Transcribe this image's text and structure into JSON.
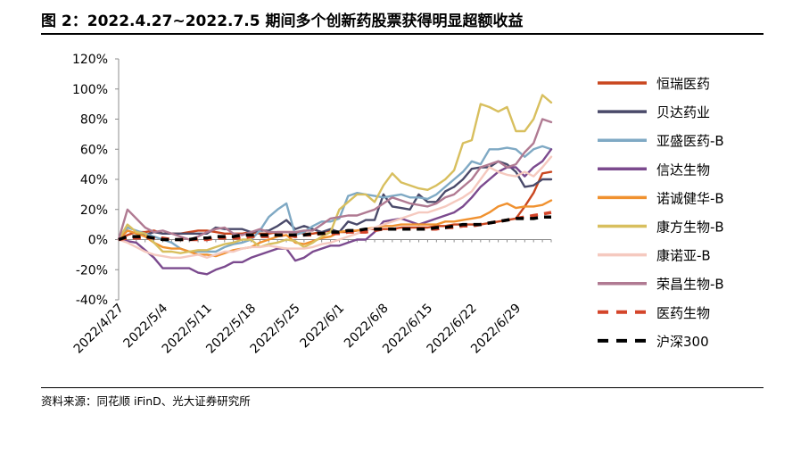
{
  "title": "图 2：2022.4.27~2022.7.5 期间多个创新药股票获得明显超额收益",
  "source": "资料来源：同花顺 iFinD、光大证券研究所",
  "chart_data": {
    "type": "line",
    "title": "",
    "xlabel": "",
    "ylabel": "",
    "ylim": [
      -40,
      120
    ],
    "yticks": [
      -40,
      -20,
      0,
      20,
      40,
      60,
      80,
      100,
      120
    ],
    "ytick_labels": [
      "-40%",
      "-20%",
      "0%",
      "20%",
      "40%",
      "60%",
      "80%",
      "100%",
      "120%"
    ],
    "x_tick_labels": [
      "2022/4/27",
      "2022/5/4",
      "2022/5/11",
      "2022/5/18",
      "2022/5/25",
      "2022/6/1",
      "2022/6/8",
      "2022/6/15",
      "2022/6/22",
      "2022/6/29"
    ],
    "x_tick_offsets": [
      0,
      5,
      10,
      15,
      20,
      25,
      30,
      35,
      40,
      45
    ],
    "grid": false,
    "legend_position": "right",
    "n_points": 50,
    "series": [
      {
        "name": "恒瑞医药",
        "color": "#C9461F",
        "style": "solid",
        "values": [
          0,
          3,
          5,
          5,
          6,
          4,
          4,
          4,
          5,
          6,
          6,
          5,
          4,
          4,
          4,
          5,
          4,
          4,
          5,
          5,
          5,
          4,
          4,
          5,
          6,
          5,
          5,
          6,
          7,
          7,
          7,
          7,
          8,
          8,
          8,
          8,
          9,
          9,
          10,
          10,
          10,
          10,
          11,
          12,
          13,
          14,
          22,
          31,
          44,
          45
        ]
      },
      {
        "name": "贝达药业",
        "color": "#4A4A6A",
        "style": "solid",
        "values": [
          0,
          6,
          4,
          3,
          5,
          4,
          4,
          4,
          4,
          4,
          4,
          8,
          7,
          7,
          7,
          5,
          6,
          6,
          9,
          13,
          7,
          9,
          7,
          5,
          7,
          5,
          12,
          10,
          13,
          13,
          30,
          22,
          21,
          20,
          30,
          25,
          25,
          32,
          35,
          40,
          47,
          48,
          48,
          52,
          50,
          45,
          35,
          36,
          40,
          40
        ]
      },
      {
        "name": "亚盛医药-B",
        "color": "#7FA9C4",
        "style": "solid",
        "values": [
          0,
          8,
          6,
          4,
          2,
          0,
          -2,
          -6,
          -8,
          -8,
          -8,
          -8,
          -5,
          -3,
          -2,
          0,
          6,
          15,
          20,
          24,
          3,
          5,
          9,
          12,
          12,
          14,
          29,
          31,
          30,
          29,
          28,
          29,
          30,
          28,
          28,
          27,
          30,
          35,
          40,
          45,
          52,
          50,
          60,
          60,
          61,
          60,
          55,
          60,
          62,
          60
        ]
      },
      {
        "name": "信达生物",
        "color": "#7B4A8E",
        "style": "solid",
        "values": [
          0,
          -1,
          -2,
          -7,
          -12,
          -19,
          -19,
          -19,
          -19,
          -22,
          -23,
          -20,
          -18,
          -15,
          -15,
          -12,
          -10,
          -8,
          -6,
          -6,
          -14,
          -12,
          -8,
          -6,
          -4,
          -4,
          -2,
          0,
          0,
          5,
          12,
          13,
          14,
          12,
          10,
          12,
          14,
          16,
          18,
          22,
          28,
          35,
          40,
          45,
          48,
          48,
          42,
          48,
          52,
          60
        ]
      },
      {
        "name": "诺诚健华-B",
        "color": "#F0912F",
        "style": "solid",
        "values": [
          0,
          6,
          4,
          2,
          -2,
          -5,
          -6,
          -6,
          -8,
          -10,
          -10,
          -11,
          -9,
          -7,
          -6,
          -5,
          -2,
          0,
          2,
          3,
          -2,
          -3,
          -1,
          1,
          2,
          5,
          6,
          6,
          7,
          8,
          9,
          9,
          10,
          10,
          10,
          10,
          10,
          12,
          12,
          13,
          14,
          15,
          18,
          22,
          24,
          21,
          22,
          22,
          23,
          26
        ]
      },
      {
        "name": "康方生物-B",
        "color": "#D8BF5E",
        "style": "solid",
        "values": [
          0,
          10,
          5,
          4,
          -2,
          -8,
          -8,
          -9,
          -8,
          -7,
          -7,
          -5,
          -3,
          -2,
          0,
          0,
          -5,
          -3,
          -2,
          0,
          -1,
          -5,
          -2,
          2,
          5,
          20,
          25,
          30,
          30,
          25,
          36,
          44,
          38,
          36,
          34,
          33,
          36,
          40,
          46,
          64,
          66,
          90,
          88,
          85,
          88,
          72,
          72,
          80,
          96,
          91
        ]
      },
      {
        "name": "康诺亚-B",
        "color": "#F5C9BF",
        "style": "solid",
        "values": [
          0,
          -2,
          -5,
          -8,
          -10,
          -11,
          -12,
          -12,
          -11,
          -10,
          -12,
          -10,
          -8,
          -8,
          -6,
          -5,
          -5,
          -4,
          -5,
          -6,
          -6,
          -6,
          -5,
          -3,
          -2,
          0,
          2,
          4,
          6,
          8,
          10,
          12,
          14,
          16,
          18,
          18,
          20,
          22,
          25,
          28,
          32,
          40,
          48,
          45,
          43,
          42,
          45,
          42,
          48,
          55
        ]
      },
      {
        "name": "荣昌生物-B",
        "color": "#B07A92",
        "style": "solid",
        "values": [
          0,
          20,
          14,
          8,
          5,
          6,
          4,
          2,
          0,
          2,
          5,
          7,
          8,
          4,
          3,
          5,
          7,
          5,
          5,
          5,
          5,
          6,
          6,
          10,
          14,
          15,
          16,
          16,
          18,
          20,
          24,
          28,
          26,
          24,
          23,
          22,
          24,
          28,
          30,
          35,
          40,
          48,
          50,
          52,
          48,
          50,
          58,
          64,
          80,
          78
        ]
      },
      {
        "name": "医药生物",
        "color": "#D4452A",
        "style": "dashed",
        "values": [
          0,
          1,
          1,
          1,
          1,
          1,
          0,
          0,
          0,
          0,
          0,
          1,
          1,
          1,
          1,
          2,
          2,
          2,
          3,
          3,
          2,
          3,
          3,
          4,
          4,
          4,
          5,
          5,
          5,
          6,
          7,
          7,
          7,
          7,
          7,
          7,
          7,
          8,
          8,
          9,
          9,
          10,
          11,
          12,
          13,
          14,
          15,
          16,
          17,
          18
        ]
      },
      {
        "name": "沪深300",
        "color": "#000000",
        "style": "dashed",
        "values": [
          0,
          2,
          2,
          2,
          1,
          0,
          0,
          0,
          0,
          1,
          1,
          2,
          2,
          2,
          3,
          3,
          3,
          3,
          3,
          3,
          3,
          3,
          4,
          4,
          5,
          5,
          6,
          6,
          7,
          7,
          7,
          7,
          7,
          7,
          7,
          7,
          8,
          8,
          9,
          10,
          10,
          10,
          11,
          12,
          13,
          14,
          14,
          14,
          15,
          15
        ]
      }
    ]
  }
}
